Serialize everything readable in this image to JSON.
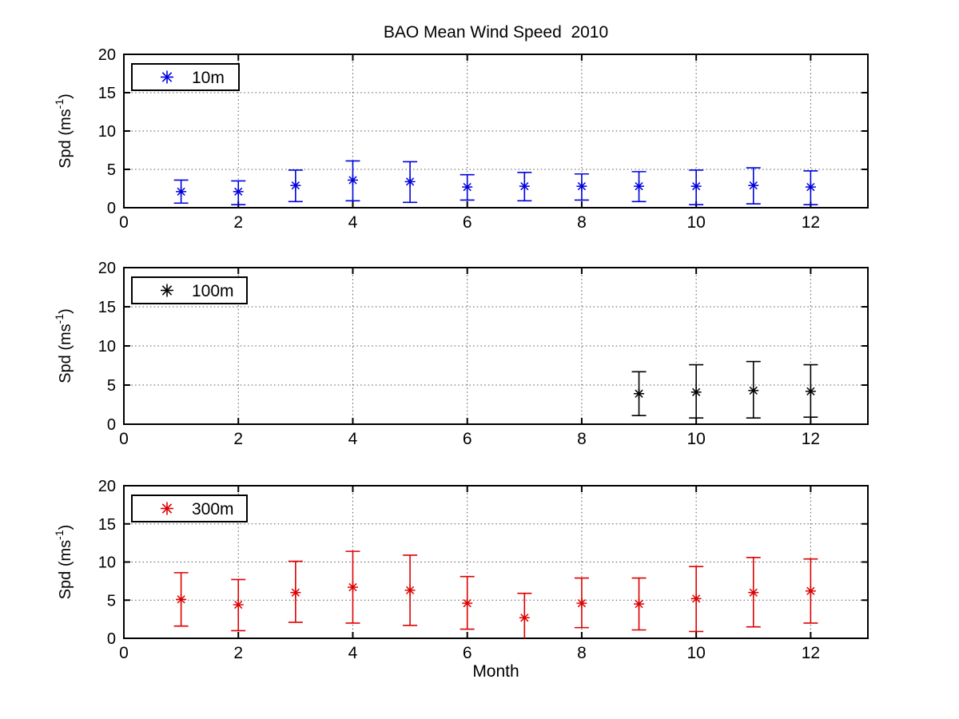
{
  "figure": {
    "title": "BAO Mean Wind Speed  2010",
    "xlabel": "Month",
    "ylabel": {
      "pre": "Spd (ms",
      "sup": "-1",
      "post": ")"
    },
    "background": "#ffffff"
  },
  "axes": {
    "x_range": [
      0,
      13
    ],
    "x_ticks": [
      0,
      2,
      4,
      6,
      8,
      10,
      12
    ],
    "y_range": [
      0,
      20
    ],
    "y_ticks": [
      0,
      5,
      10,
      15,
      20
    ],
    "grid": "dotted",
    "axis_color": "#000000",
    "grid_color": "#555555"
  },
  "chart_data": [
    {
      "type": "scatter",
      "subtype": "errorbar",
      "series_name": "10m",
      "marker": "asterisk",
      "color": "#0000dd",
      "legend_position": "top-left",
      "x": [
        1,
        2,
        3,
        4,
        5,
        6,
        7,
        8,
        9,
        10,
        11,
        12
      ],
      "mean": [
        2.1,
        2.1,
        2.9,
        3.6,
        3.4,
        2.7,
        2.8,
        2.8,
        2.8,
        2.8,
        2.9,
        2.7
      ],
      "lower": [
        0.6,
        0.4,
        0.8,
        0.9,
        0.7,
        1.0,
        0.9,
        1.0,
        0.8,
        0.4,
        0.5,
        0.4
      ],
      "upper": [
        3.6,
        3.5,
        4.9,
        6.1,
        6.0,
        4.3,
        4.6,
        4.4,
        4.7,
        4.9,
        5.2,
        4.8
      ]
    },
    {
      "type": "scatter",
      "subtype": "errorbar",
      "series_name": "100m",
      "marker": "asterisk",
      "color": "#000000",
      "legend_position": "top-left",
      "x": [
        9,
        10,
        11,
        12
      ],
      "mean": [
        3.9,
        4.1,
        4.3,
        4.2
      ],
      "lower": [
        1.1,
        0.8,
        0.8,
        0.9
      ],
      "upper": [
        6.7,
        7.6,
        8.0,
        7.6
      ]
    },
    {
      "type": "scatter",
      "subtype": "errorbar",
      "series_name": "300m",
      "marker": "asterisk",
      "color": "#dd0000",
      "legend_position": "top-left",
      "x": [
        1,
        2,
        3,
        4,
        5,
        6,
        7,
        8,
        9,
        10,
        11,
        12
      ],
      "mean": [
        5.1,
        4.4,
        6.0,
        6.7,
        6.3,
        4.6,
        2.7,
        4.6,
        4.5,
        5.2,
        6.0,
        6.2
      ],
      "lower": [
        1.6,
        1.0,
        2.1,
        2.0,
        1.7,
        1.2,
        0.0,
        1.4,
        1.1,
        0.9,
        1.5,
        2.0
      ],
      "upper": [
        8.6,
        7.7,
        10.1,
        11.4,
        10.9,
        8.1,
        5.9,
        7.9,
        7.9,
        9.4,
        10.6,
        10.4
      ]
    }
  ]
}
